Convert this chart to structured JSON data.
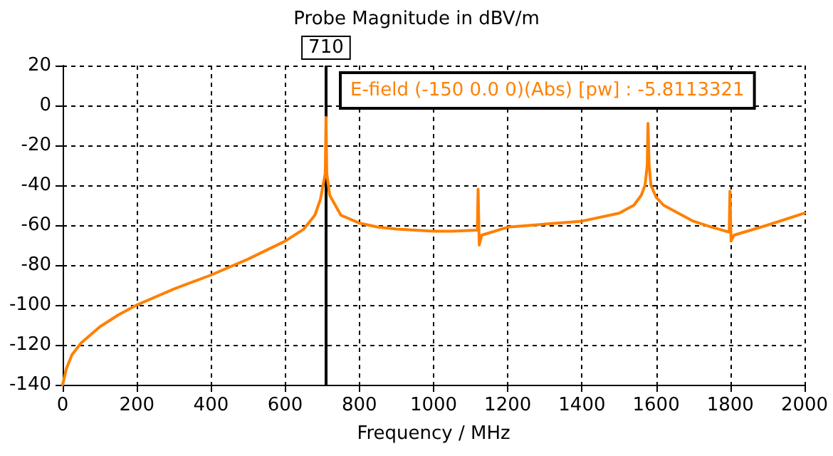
{
  "chart_data": {
    "type": "line",
    "title": "Probe Magnitude in dBV/m",
    "xlabel": "Frequency / MHz",
    "annotations": [
      "E-field (-150 0.0 0)(Abs) [pw] : -5.8113321"
    ],
    "x": [
      0,
      10,
      25,
      50,
      100,
      150,
      200,
      300,
      400,
      500,
      600,
      650,
      680,
      695,
      705,
      708,
      710,
      712,
      720,
      750,
      800,
      850,
      900,
      1000,
      1050,
      1118,
      1120,
      1123,
      1130,
      1200,
      1300,
      1400,
      1500,
      1540,
      1560,
      1570,
      1576,
      1578,
      1581,
      1586,
      1600,
      1620,
      1700,
      1750,
      1797,
      1799,
      1802,
      1810,
      1900,
      2000
    ],
    "series": [
      {
        "color": "#ff8000",
        "values": [
          -140,
          -132,
          -125,
          -119,
          -111,
          -105,
          -100,
          -92,
          -85,
          -77,
          -68,
          -62,
          -55,
          -47,
          -37,
          -34,
          -6,
          -34,
          -45,
          -55,
          -59,
          -61,
          -62,
          -63,
          -63,
          -62.5,
          -42,
          -70,
          -65,
          -61,
          -59.5,
          -58,
          -54,
          -50,
          -45,
          -40,
          -30,
          -9,
          -30,
          -40,
          -46,
          -50,
          -58,
          -61,
          -63.5,
          -43,
          -68,
          -65,
          -60,
          -54
        ]
      }
    ],
    "xlim": [
      0,
      2000
    ],
    "xticks": [
      0,
      200,
      400,
      600,
      800,
      1000,
      1200,
      1400,
      1600,
      1800,
      2000
    ],
    "ylim": [
      -140,
      20
    ],
    "yticks": [
      -140,
      -120,
      -100,
      -80,
      -60,
      -40,
      -20,
      0,
      20
    ],
    "ref_lines": [
      {
        "axis": "x",
        "value": 710,
        "label": "710",
        "color": "#000000"
      }
    ],
    "grid": true,
    "marker": "none",
    "line_style": "solid"
  }
}
